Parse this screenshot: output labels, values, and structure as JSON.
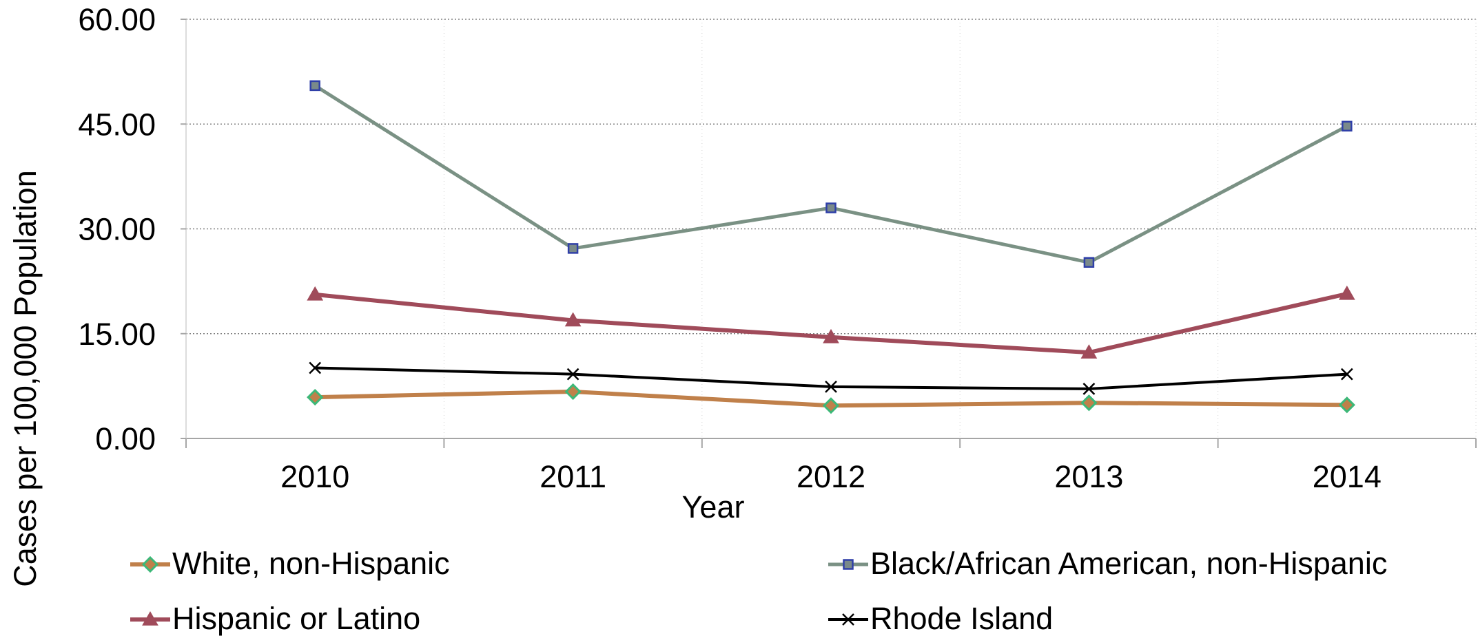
{
  "chart_data": {
    "type": "line",
    "title": "",
    "xlabel": "Year",
    "ylabel": "Cases per 100,000 Population",
    "categories": [
      "2010",
      "2011",
      "2012",
      "2013",
      "2014"
    ],
    "ylim": [
      0,
      60
    ],
    "yticks": [
      "0.00",
      "15.00",
      "30.00",
      "45.00",
      "60.00"
    ],
    "grid": "horizontal dotted",
    "legend_position": "bottom",
    "series": [
      {
        "name": "White, non-Hispanic",
        "values": [
          5.9,
          6.7,
          4.7,
          5.1,
          4.8
        ],
        "color": "#c0804a",
        "marker": "diamond",
        "marker_color": "#3cb878",
        "marker_fill": "#c0804a"
      },
      {
        "name": "Black/African American, non-Hispanic",
        "values": [
          50.5,
          27.2,
          33.0,
          25.2,
          44.7
        ],
        "color": "#7a9184",
        "marker": "square",
        "marker_color": "#2f3fa8",
        "marker_fill": "#7a8a8a"
      },
      {
        "name": "Hispanic or Latino",
        "values": [
          20.6,
          16.9,
          14.5,
          12.3,
          20.7
        ],
        "color": "#a04b5a",
        "marker": "triangle",
        "marker_color": "#a04b5a",
        "marker_fill": "#a04b5a"
      },
      {
        "name": "Rhode Island",
        "values": [
          10.1,
          9.2,
          7.4,
          7.1,
          9.2
        ],
        "color": "#000000",
        "marker": "x",
        "marker_color": "#000000",
        "marker_fill": "none"
      }
    ]
  }
}
